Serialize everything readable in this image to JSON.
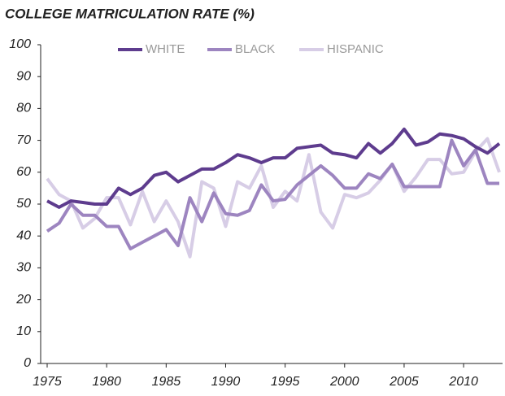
{
  "chart_data": {
    "type": "line",
    "title": "COLLEGE MATRICULATION RATE (%)",
    "x": [
      1975,
      1976,
      1977,
      1978,
      1979,
      1980,
      1981,
      1982,
      1983,
      1984,
      1985,
      1986,
      1987,
      1988,
      1989,
      1990,
      1991,
      1992,
      1993,
      1994,
      1995,
      1996,
      1997,
      1998,
      1999,
      2000,
      2001,
      2002,
      2003,
      2004,
      2005,
      2006,
      2007,
      2008,
      2009,
      2010,
      2011,
      2012,
      2013
    ],
    "series": [
      {
        "name": "WHITE",
        "color": "#5e3c8e",
        "values": [
          51,
          49,
          51,
          50.5,
          50,
          50,
          55,
          53,
          55,
          59,
          60,
          57,
          59,
          61,
          61,
          63,
          65.5,
          64.5,
          63,
          64.5,
          64.5,
          67.5,
          68,
          68.5,
          66,
          65.5,
          64.5,
          69,
          66,
          69,
          73.5,
          68.5,
          69.5,
          72,
          71.5,
          70.5,
          68,
          66,
          69
        ]
      },
      {
        "name": "BLACK",
        "color": "#9d85c0",
        "values": [
          41.5,
          44,
          50,
          46.5,
          46.5,
          43,
          43,
          36,
          38,
          40,
          42,
          37,
          52,
          44.5,
          53.5,
          47,
          46.5,
          48,
          56,
          51,
          51.5,
          56,
          59,
          62,
          59,
          55,
          55,
          59.5,
          58,
          62.5,
          55.5,
          55.5,
          55.5,
          55.5,
          70,
          62,
          67,
          56.5,
          56.5
        ]
      },
      {
        "name": "HISPANIC",
        "color": "#d7cde6",
        "values": [
          58,
          53,
          51,
          42.5,
          45.5,
          52,
          52,
          43.5,
          54,
          44.5,
          51,
          44.5,
          33.5,
          57,
          55,
          43,
          57,
          55,
          62,
          49,
          54,
          51,
          65.5,
          47.5,
          42.5,
          53,
          52,
          53.5,
          57.5,
          62.5,
          54,
          58.5,
          64,
          64,
          59.5,
          60,
          66.5,
          70.5,
          60
        ]
      }
    ],
    "xlim": [
      1975,
      2013
    ],
    "xticks": [
      1975,
      1980,
      1985,
      1990,
      1995,
      2000,
      2005,
      2010
    ],
    "ylim": [
      0,
      100
    ],
    "yticks": [
      0,
      10,
      20,
      30,
      40,
      50,
      60,
      70,
      80,
      90,
      100
    ],
    "legend": "top"
  }
}
